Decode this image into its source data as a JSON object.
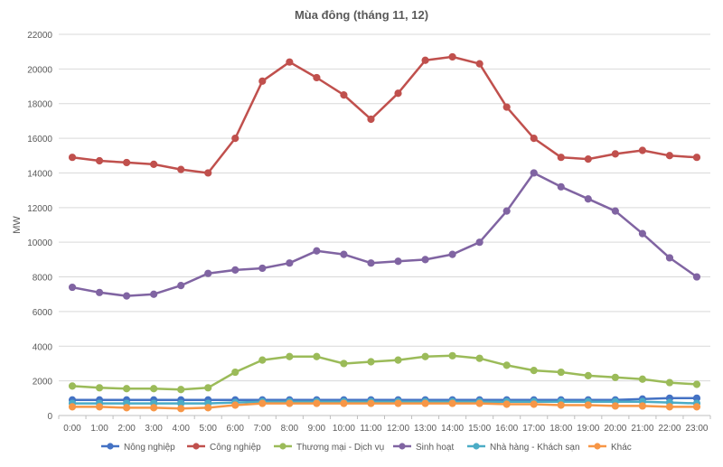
{
  "chart_data": {
    "type": "line",
    "title": "Mùa đông (tháng 11, 12)",
    "xlabel": "",
    "ylabel": "MW",
    "ylim": [
      0,
      22000
    ],
    "yticks": [
      "0",
      "2000",
      "4000",
      "6000",
      "8000",
      "10000",
      "12000",
      "14000",
      "16000",
      "18000",
      "20000",
      "22000"
    ],
    "grid": true,
    "legend_position": "bottom",
    "categories": [
      "0:00",
      "1:00",
      "2:00",
      "3:00",
      "4:00",
      "5:00",
      "6:00",
      "7:00",
      "8:00",
      "9:00",
      "10:00",
      "11:00",
      "12:00",
      "13:00",
      "14:00",
      "15:00",
      "16:00",
      "17:00",
      "18:00",
      "19:00",
      "20:00",
      "21:00",
      "22:00",
      "23:00"
    ],
    "series": [
      {
        "name": "Nông nghiệp",
        "color": "#4472c4",
        "values": [
          900,
          900,
          900,
          900,
          900,
          900,
          900,
          900,
          900,
          900,
          900,
          900,
          900,
          900,
          900,
          900,
          900,
          900,
          900,
          900,
          900,
          950,
          1000,
          1000
        ]
      },
      {
        "name": "Công nghiệp",
        "color": "#c0504d",
        "values": [
          14900,
          14700,
          14600,
          14500,
          14200,
          14000,
          16000,
          19300,
          20400,
          19500,
          18500,
          17100,
          18600,
          20500,
          20700,
          20300,
          17800,
          16000,
          14900,
          14800,
          15100,
          15300,
          15000,
          14900
        ]
      },
      {
        "name": "Thương mại - Dịch vụ",
        "color": "#9bbb59",
        "values": [
          1700,
          1600,
          1550,
          1550,
          1500,
          1600,
          2500,
          3200,
          3400,
          3400,
          3000,
          3100,
          3200,
          3400,
          3450,
          3300,
          2900,
          2600,
          2500,
          2300,
          2200,
          2100,
          1900,
          1800
        ]
      },
      {
        "name": "Sinh hoạt",
        "color": "#8064a2",
        "values": [
          7400,
          7100,
          6900,
          7000,
          7500,
          8200,
          8400,
          8500,
          8800,
          9500,
          9300,
          8800,
          8900,
          9000,
          9300,
          10000,
          11800,
          14000,
          13200,
          12500,
          11800,
          10500,
          9100,
          8000
        ]
      },
      {
        "name": "Nhà hàng - Khách sạn",
        "color": "#4bacc6",
        "values": [
          700,
          700,
          700,
          700,
          700,
          700,
          750,
          800,
          800,
          800,
          800,
          800,
          800,
          800,
          800,
          800,
          800,
          800,
          800,
          800,
          800,
          800,
          750,
          700
        ]
      },
      {
        "name": "Khác",
        "color": "#f79646",
        "values": [
          500,
          500,
          450,
          450,
          400,
          450,
          600,
          700,
          700,
          700,
          700,
          700,
          700,
          700,
          700,
          700,
          650,
          650,
          600,
          600,
          550,
          550,
          500,
          500
        ]
      }
    ]
  }
}
